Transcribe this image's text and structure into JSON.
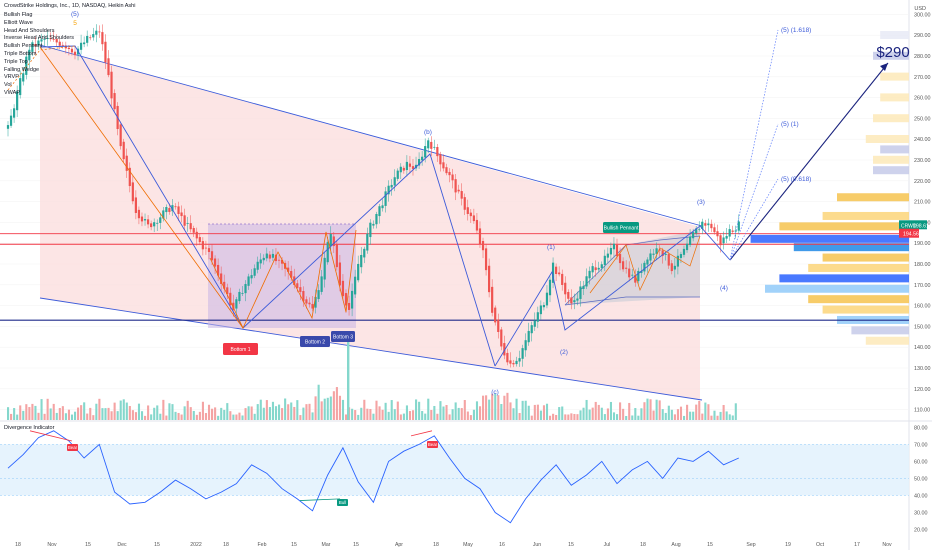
{
  "header": {
    "title": "CrowdStrike Holdings, Inc., 1D, NASDAQ, Heikin Ashi",
    "currency": "USD"
  },
  "indicators_list": [
    "Bullish Flag",
    "Elliott Wave",
    "Head And Shoulders",
    "Inverse Head And Shoulders",
    "Bullish Pennant",
    "Triple Bottom",
    "Triple Top",
    "Falling Wedge",
    "VRVP",
    "Vol",
    "VWAP"
  ],
  "oscillator": {
    "title": "Divergence Indicator"
  },
  "chart_data": [
    {
      "type": "candlestick",
      "title": "CrowdStrike Holdings, Inc., 1D, NASDAQ, Heikin Ashi",
      "y_ticks": [
        110,
        120,
        130,
        140,
        150,
        160,
        170,
        180,
        190,
        200,
        210,
        220,
        230,
        240,
        250,
        260,
        270,
        280,
        290,
        300
      ],
      "ylim": [
        105,
        305
      ],
      "x_ticks": [
        "18",
        "Nov",
        "15",
        "Dec",
        "15",
        "2022",
        "18",
        "Feb",
        "15",
        "Mar",
        "15",
        "Apr",
        "18",
        "May",
        "16",
        "Jun",
        "15",
        "Jul",
        "18",
        "Aug",
        "15",
        "Sep",
        "19",
        "Oct",
        "17",
        "Nov"
      ],
      "close_path": [
        {
          "t": 0,
          "v": 245
        },
        {
          "t": 3,
          "v": 262
        },
        {
          "t": 7,
          "v": 284
        },
        {
          "t": 12,
          "v": 288
        },
        {
          "t": 18,
          "v": 286
        },
        {
          "t": 22,
          "v": 282
        },
        {
          "t": 26,
          "v": 288
        },
        {
          "t": 30,
          "v": 292
        },
        {
          "t": 33,
          "v": 270
        },
        {
          "t": 37,
          "v": 235
        },
        {
          "t": 42,
          "v": 206
        },
        {
          "t": 46,
          "v": 198
        },
        {
          "t": 50,
          "v": 203
        },
        {
          "t": 54,
          "v": 208
        },
        {
          "t": 58,
          "v": 200
        },
        {
          "t": 62,
          "v": 192
        },
        {
          "t": 66,
          "v": 185
        },
        {
          "t": 70,
          "v": 172
        },
        {
          "t": 74,
          "v": 158
        },
        {
          "t": 77,
          "v": 168
        },
        {
          "t": 81,
          "v": 178
        },
        {
          "t": 85,
          "v": 186
        },
        {
          "t": 89,
          "v": 180
        },
        {
          "t": 93,
          "v": 174
        },
        {
          "t": 97,
          "v": 164
        },
        {
          "t": 100,
          "v": 158
        },
        {
          "t": 103,
          "v": 175
        },
        {
          "t": 106,
          "v": 196
        },
        {
          "t": 109,
          "v": 170
        },
        {
          "t": 112,
          "v": 158
        },
        {
          "t": 115,
          "v": 180
        },
        {
          "t": 119,
          "v": 198
        },
        {
          "t": 123,
          "v": 210
        },
        {
          "t": 127,
          "v": 222
        },
        {
          "t": 131,
          "v": 228
        },
        {
          "t": 134,
          "v": 226
        },
        {
          "t": 138,
          "v": 240
        },
        {
          "t": 141,
          "v": 232
        },
        {
          "t": 145,
          "v": 222
        },
        {
          "t": 149,
          "v": 210
        },
        {
          "t": 153,
          "v": 200
        },
        {
          "t": 156,
          "v": 185
        },
        {
          "t": 159,
          "v": 158
        },
        {
          "t": 162,
          "v": 140
        },
        {
          "t": 165,
          "v": 132
        },
        {
          "t": 168,
          "v": 136
        },
        {
          "t": 172,
          "v": 150
        },
        {
          "t": 176,
          "v": 162
        },
        {
          "t": 179,
          "v": 180
        },
        {
          "t": 182,
          "v": 170
        },
        {
          "t": 185,
          "v": 160
        },
        {
          "t": 188,
          "v": 168
        },
        {
          "t": 192,
          "v": 178
        },
        {
          "t": 196,
          "v": 182
        },
        {
          "t": 199,
          "v": 188
        },
        {
          "t": 202,
          "v": 179
        },
        {
          "t": 206,
          "v": 172
        },
        {
          "t": 210,
          "v": 184
        },
        {
          "t": 214,
          "v": 188
        },
        {
          "t": 218,
          "v": 178
        },
        {
          "t": 222,
          "v": 186
        },
        {
          "t": 225,
          "v": 194
        },
        {
          "t": 228,
          "v": 200
        },
        {
          "t": 231,
          "v": 198
        },
        {
          "t": 234,
          "v": 190
        },
        {
          "t": 237,
          "v": 196
        },
        {
          "t": 240,
          "v": 199
        }
      ],
      "horizontal_levels": [
        {
          "price": 189.5,
          "color": "#f23645"
        },
        {
          "price": 194.56,
          "color": "#f23645"
        },
        {
          "price": 153,
          "color": "#1e2a8a"
        }
      ],
      "price_labels": [
        {
          "ticker": "CRWD",
          "value": "198.61",
          "color": "#089981"
        },
        {
          "value": "194.56",
          "color": "#f23645"
        }
      ],
      "projections": [
        {
          "label": "(5) (1.618)",
          "price": 292
        },
        {
          "label": "(5) (1)",
          "price": 256
        },
        {
          "label": "(5) (0.618)",
          "price": 227
        }
      ],
      "target_label": "$290",
      "wave_labels": [
        "(5)",
        "5",
        "(b)",
        "(1)",
        "(2)",
        "(3)",
        "(4)",
        "(c)",
        "4"
      ],
      "pattern_labels": [
        {
          "text": "Bottom 1",
          "bg": "#f23645"
        },
        {
          "text": "Bottom 2",
          "bg": "#3949ab"
        },
        {
          "text": "Bottom 3",
          "bg": "#3949ab"
        },
        {
          "text": "Bullish Pennant",
          "bg": "#089981"
        }
      ],
      "colors": {
        "up": "#26a69a",
        "down": "#ef5350",
        "wedge_fill": "#fbdcdc",
        "trend": "#3d5bd9"
      }
    },
    {
      "type": "line",
      "title": "Divergence Indicator",
      "y_ticks": [
        20,
        30,
        40,
        50,
        60,
        70,
        80
      ],
      "ylim": [
        15,
        82
      ],
      "band": [
        40,
        70
      ],
      "labels": [
        {
          "text": "Bear",
          "bg": "#f23645"
        },
        {
          "text": "Bull",
          "bg": "#089981"
        },
        {
          "text": "Bear",
          "bg": "#f23645"
        }
      ],
      "rsi_path": [
        {
          "t": 0,
          "v": 56
        },
        {
          "t": 5,
          "v": 64
        },
        {
          "t": 10,
          "v": 74
        },
        {
          "t": 15,
          "v": 78
        },
        {
          "t": 20,
          "v": 72
        },
        {
          "t": 25,
          "v": 62
        },
        {
          "t": 30,
          "v": 70
        },
        {
          "t": 35,
          "v": 42
        },
        {
          "t": 40,
          "v": 35
        },
        {
          "t": 45,
          "v": 36
        },
        {
          "t": 50,
          "v": 42
        },
        {
          "t": 55,
          "v": 49
        },
        {
          "t": 60,
          "v": 44
        },
        {
          "t": 65,
          "v": 38
        },
        {
          "t": 70,
          "v": 42
        },
        {
          "t": 75,
          "v": 47
        },
        {
          "t": 80,
          "v": 58
        },
        {
          "t": 85,
          "v": 53
        },
        {
          "t": 90,
          "v": 44
        },
        {
          "t": 95,
          "v": 38
        },
        {
          "t": 100,
          "v": 31
        },
        {
          "t": 105,
          "v": 52
        },
        {
          "t": 110,
          "v": 68
        },
        {
          "t": 115,
          "v": 48
        },
        {
          "t": 120,
          "v": 36
        },
        {
          "t": 125,
          "v": 60
        },
        {
          "t": 130,
          "v": 66
        },
        {
          "t": 135,
          "v": 70
        },
        {
          "t": 140,
          "v": 75
        },
        {
          "t": 145,
          "v": 62
        },
        {
          "t": 150,
          "v": 50
        },
        {
          "t": 155,
          "v": 44
        },
        {
          "t": 160,
          "v": 30
        },
        {
          "t": 165,
          "v": 24
        },
        {
          "t": 170,
          "v": 38
        },
        {
          "t": 175,
          "v": 49
        },
        {
          "t": 180,
          "v": 58
        },
        {
          "t": 185,
          "v": 46
        },
        {
          "t": 190,
          "v": 52
        },
        {
          "t": 195,
          "v": 60
        },
        {
          "t": 200,
          "v": 47
        },
        {
          "t": 205,
          "v": 55
        },
        {
          "t": 210,
          "v": 60
        },
        {
          "t": 215,
          "v": 50
        },
        {
          "t": 220,
          "v": 62
        },
        {
          "t": 225,
          "v": 60
        },
        {
          "t": 230,
          "v": 66
        },
        {
          "t": 235,
          "v": 58
        },
        {
          "t": 240,
          "v": 62
        }
      ]
    }
  ]
}
